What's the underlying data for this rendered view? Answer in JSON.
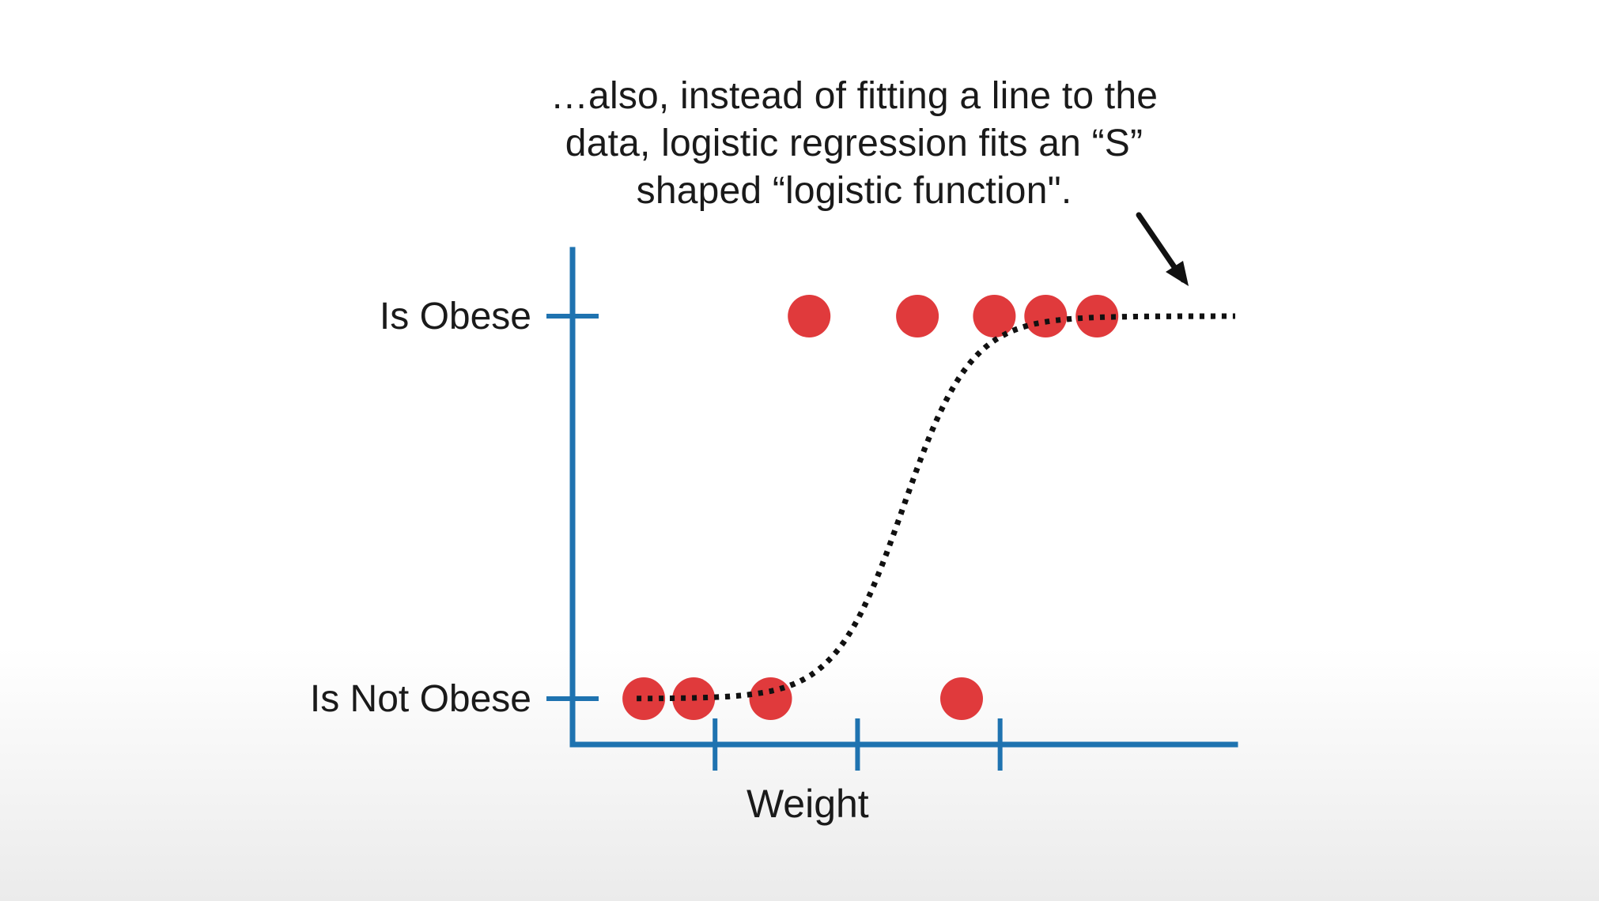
{
  "annotation": {
    "line1": "…also, instead of fitting a line to the",
    "line2": "data, logistic regression fits an “S”",
    "line3": "shaped “logistic function\"."
  },
  "chart_data": {
    "type": "scatter",
    "xlabel": "Weight",
    "ylabel": "",
    "y_categories": [
      "Is Not Obese",
      "Is Obese"
    ],
    "x_tick_count": 3,
    "grid": false,
    "points": [
      {
        "x": 0.5,
        "y": 0
      },
      {
        "x": 0.85,
        "y": 0
      },
      {
        "x": 1.39,
        "y": 0
      },
      {
        "x": 2.73,
        "y": 0
      },
      {
        "x": 1.66,
        "y": 1
      },
      {
        "x": 2.42,
        "y": 1
      },
      {
        "x": 2.96,
        "y": 1
      },
      {
        "x": 3.32,
        "y": 1
      },
      {
        "x": 3.68,
        "y": 1
      }
    ],
    "curve": {
      "type": "logistic",
      "style": "dotted",
      "midpoint": 2.32,
      "steepness": 4.2,
      "x_range": [
        0.45,
        4.65
      ]
    },
    "xlim": [
      0,
      4.65
    ],
    "colors": {
      "axis": "#1f73b0",
      "points": "#e03a3c",
      "curve": "#111111"
    }
  }
}
